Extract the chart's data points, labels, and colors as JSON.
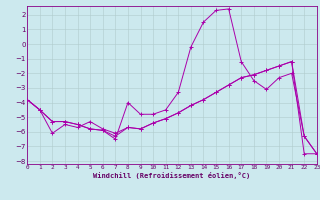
{
  "xlabel": "Windchill (Refroidissement éolien,°C)",
  "bg_color": "#cce9ee",
  "grid_color": "#b0cccc",
  "line_color": "#aa00aa",
  "xlim": [
    0,
    23
  ],
  "ylim": [
    -8.2,
    2.6
  ],
  "yticks": [
    -8,
    -7,
    -6,
    -5,
    -4,
    -3,
    -2,
    -1,
    0,
    1,
    2
  ],
  "xticks": [
    0,
    1,
    2,
    3,
    4,
    5,
    6,
    7,
    8,
    9,
    10,
    11,
    12,
    13,
    14,
    15,
    16,
    17,
    18,
    19,
    20,
    21,
    22,
    23
  ],
  "series1_x": [
    0,
    1,
    2,
    3,
    4,
    5,
    6,
    7,
    8,
    9,
    10,
    11,
    12,
    13,
    14,
    15,
    16,
    17,
    18,
    19,
    20,
    21,
    22,
    23
  ],
  "series1_y": [
    -3.8,
    -4.5,
    -5.3,
    -5.3,
    -5.5,
    -5.8,
    -5.9,
    -6.5,
    -4.0,
    -4.8,
    -4.8,
    -4.5,
    -3.3,
    -0.2,
    1.5,
    2.3,
    2.4,
    -1.2,
    -2.5,
    -3.1,
    -2.3,
    -2.0,
    -6.3,
    -7.5
  ],
  "series2_x": [
    0,
    1,
    2,
    3,
    4,
    5,
    6,
    7,
    8,
    9,
    10,
    11,
    12,
    13,
    14,
    15,
    16,
    17,
    18,
    19,
    20,
    21,
    22,
    23
  ],
  "series2_y": [
    -3.8,
    -4.5,
    -6.1,
    -5.5,
    -5.7,
    -5.3,
    -5.8,
    -6.1,
    -5.7,
    -5.8,
    -5.4,
    -5.1,
    -4.7,
    -4.2,
    -3.8,
    -3.3,
    -2.8,
    -2.3,
    -2.1,
    -1.8,
    -1.5,
    -1.2,
    -7.5,
    -7.5
  ],
  "series3_x": [
    0,
    1,
    2,
    3,
    4,
    5,
    6,
    7,
    8,
    9,
    10,
    11,
    12,
    13,
    14,
    15,
    16,
    17,
    18,
    19,
    20,
    21,
    22,
    23
  ],
  "series3_y": [
    -3.8,
    -4.5,
    -5.3,
    -5.3,
    -5.5,
    -5.8,
    -5.9,
    -6.3,
    -5.7,
    -5.8,
    -5.4,
    -5.1,
    -4.7,
    -4.2,
    -3.8,
    -3.3,
    -2.8,
    -2.3,
    -2.1,
    -1.8,
    -1.5,
    -1.2,
    -6.3,
    -7.5
  ]
}
